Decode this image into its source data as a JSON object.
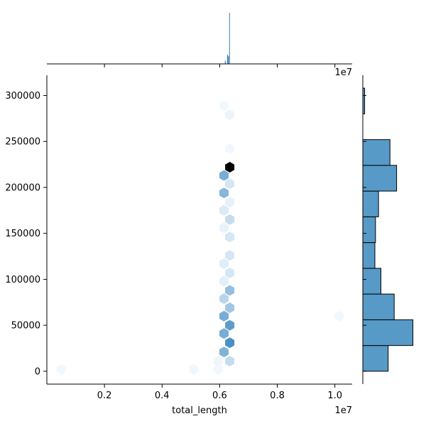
{
  "chart_data": {
    "type": "hexbin",
    "xlabel": "total_length",
    "ylabel": "",
    "x_offset_label": "1e7",
    "top_offset_label": "1e7",
    "xlim": [
      0.0,
      10600000
    ],
    "ylim": [
      -14000,
      322000
    ],
    "x_ticks": [
      {
        "value": 2000000,
        "label": "0.2"
      },
      {
        "value": 4000000,
        "label": "0.4"
      },
      {
        "value": 6000000,
        "label": "0.6"
      },
      {
        "value": 8000000,
        "label": "0.8"
      },
      {
        "value": 10000000,
        "label": "1.0"
      }
    ],
    "y_ticks": [
      {
        "value": 0,
        "label": "0"
      },
      {
        "value": 50000,
        "label": "50000"
      },
      {
        "value": 100000,
        "label": "100000"
      },
      {
        "value": 150000,
        "label": "150000"
      },
      {
        "value": 200000,
        "label": "200000"
      },
      {
        "value": 250000,
        "label": "250000"
      },
      {
        "value": 300000,
        "label": "300000"
      }
    ],
    "hexbins": [
      {
        "x": 6350000,
        "y": 222000,
        "density": 1.0
      },
      {
        "x": 6150000,
        "y": 213000,
        "density": 0.45
      },
      {
        "x": 6350000,
        "y": 204000,
        "density": 0.12
      },
      {
        "x": 6150000,
        "y": 194000,
        "density": 0.4
      },
      {
        "x": 6350000,
        "y": 184000,
        "density": 0.06
      },
      {
        "x": 6150000,
        "y": 175000,
        "density": 0.1
      },
      {
        "x": 6350000,
        "y": 165000,
        "density": 0.18
      },
      {
        "x": 6150000,
        "y": 156000,
        "density": 0.05
      },
      {
        "x": 6350000,
        "y": 146000,
        "density": 0.12
      },
      {
        "x": 6350000,
        "y": 126000,
        "density": 0.12
      },
      {
        "x": 6150000,
        "y": 117000,
        "density": 0.08
      },
      {
        "x": 6350000,
        "y": 107000,
        "density": 0.12
      },
      {
        "x": 6150000,
        "y": 98000,
        "density": 0.07
      },
      {
        "x": 6350000,
        "y": 88000,
        "density": 0.35
      },
      {
        "x": 6150000,
        "y": 79000,
        "density": 0.22
      },
      {
        "x": 6350000,
        "y": 69000,
        "density": 0.3
      },
      {
        "x": 6150000,
        "y": 60000,
        "density": 0.45
      },
      {
        "x": 6350000,
        "y": 50000,
        "density": 0.55
      },
      {
        "x": 6150000,
        "y": 41000,
        "density": 0.45
      },
      {
        "x": 6350000,
        "y": 31000,
        "density": 0.62
      },
      {
        "x": 6150000,
        "y": 21000,
        "density": 0.42
      },
      {
        "x": 6350000,
        "y": 11000,
        "density": 0.18
      },
      {
        "x": 5950000,
        "y": 11000,
        "density": 0.03
      },
      {
        "x": 5950000,
        "y": 2000,
        "density": 0.02
      },
      {
        "x": 6350000,
        "y": 279000,
        "density": 0.04
      },
      {
        "x": 6150000,
        "y": 289000,
        "density": 0.02
      },
      {
        "x": 6350000,
        "y": 242000,
        "density": 0.02
      },
      {
        "x": 500000,
        "y": 2000,
        "density": 0.02
      },
      {
        "x": 5100000,
        "y": 2000,
        "density": 0.02
      },
      {
        "x": 10150000,
        "y": 60000,
        "density": 0.02
      }
    ],
    "right_histogram": [
      {
        "bin_start": 0,
        "bin_end": 28000,
        "count": 0.42
      },
      {
        "bin_start": 28000,
        "bin_end": 56000,
        "count": 0.83
      },
      {
        "bin_start": 56000,
        "bin_end": 84000,
        "count": 0.52
      },
      {
        "bin_start": 84000,
        "bin_end": 112000,
        "count": 0.3
      },
      {
        "bin_start": 112000,
        "bin_end": 140000,
        "count": 0.2
      },
      {
        "bin_start": 140000,
        "bin_end": 168000,
        "count": 0.21
      },
      {
        "bin_start": 168000,
        "bin_end": 196000,
        "count": 0.26
      },
      {
        "bin_start": 196000,
        "bin_end": 224000,
        "count": 0.56
      },
      {
        "bin_start": 224000,
        "bin_end": 252000,
        "count": 0.45
      },
      {
        "bin_start": 252000,
        "bin_end": 280000,
        "count": 0.0
      },
      {
        "bin_start": 280000,
        "bin_end": 308000,
        "count": 0.03
      }
    ],
    "top_histogram": [
      {
        "x_start": 6180000,
        "x_end": 6210000,
        "count": 0.06
      },
      {
        "x_start": 6260000,
        "x_end": 6290000,
        "count": 0.18
      },
      {
        "x_start": 6290000,
        "x_end": 6320000,
        "count": 0.15
      },
      {
        "x_start": 6330000,
        "x_end": 6350000,
        "count": 1.0
      }
    ],
    "colors": {
      "hex_low": "#f7fbff",
      "hex_mid": "#3182bd",
      "hex_high": "#000000",
      "histogram_fill": "#5799c7",
      "histogram_stroke": "#000000",
      "top_hist": "#3b7fb5"
    },
    "grid": false,
    "legend": "none"
  }
}
